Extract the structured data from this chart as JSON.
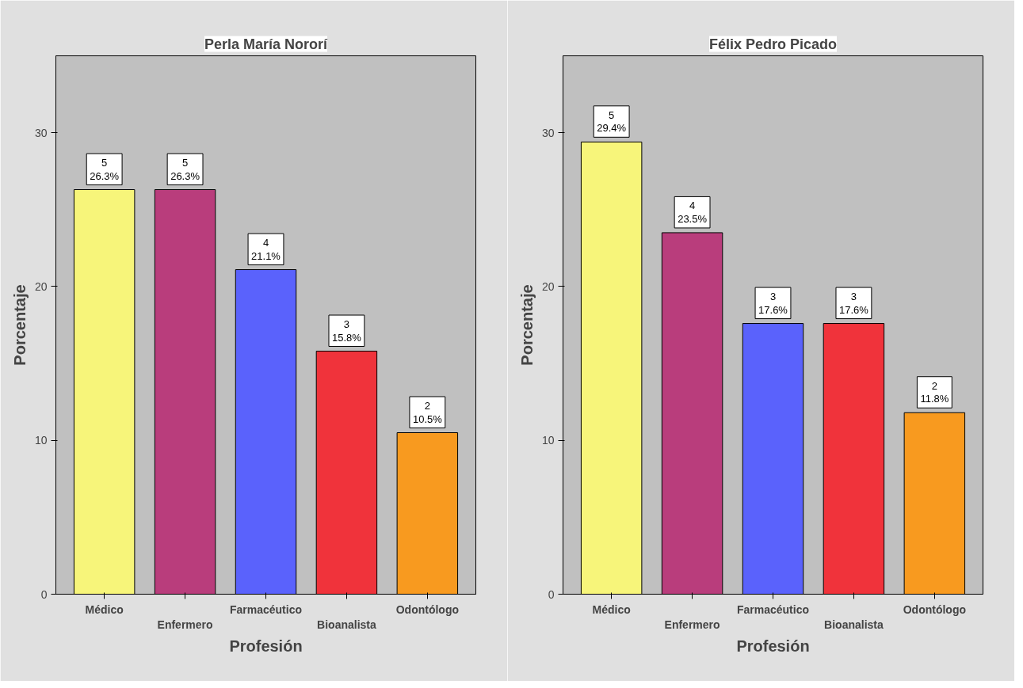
{
  "chart_data": [
    {
      "type": "bar",
      "title": "Perla María Nororí",
      "xlabel": "Profesión",
      "ylabel": "Porcentaje",
      "categories": [
        "Médico",
        "Enfermero",
        "Farmacéutico",
        "Bioanalista",
        "Odontólogo"
      ],
      "values": [
        26.3,
        26.3,
        21.1,
        15.8,
        10.5
      ],
      "colors": [
        "#f7f57a",
        "#b93d7c",
        "#5a62fc",
        "#f0333b",
        "#f89a1f"
      ],
      "value_labels": [
        "5\n26.3%",
        "5\n26.3%",
        "4\n21.1%",
        "3\n15.8%",
        "2\n10.5%"
      ],
      "ylim": [
        0,
        35
      ],
      "yticks": [
        0,
        10,
        20,
        30
      ],
      "grid": false
    },
    {
      "type": "bar",
      "title": "Félix Pedro Picado",
      "xlabel": "Profesión",
      "ylabel": "Porcentaje",
      "categories": [
        "Médico",
        "Enfermero",
        "Farmacéutico",
        "Bioanalista",
        "Odontólogo"
      ],
      "values": [
        29.4,
        23.5,
        17.6,
        17.6,
        11.8
      ],
      "colors": [
        "#f7f57a",
        "#b93d7c",
        "#5a62fc",
        "#f0333b",
        "#f89a1f"
      ],
      "value_labels": [
        "5\n29.4%",
        "4\n23.5%",
        "3\n17.6%",
        "3\n17.6%",
        "2\n11.8%"
      ],
      "ylim": [
        0,
        35
      ],
      "yticks": [
        0,
        10,
        20,
        30
      ],
      "grid": false
    }
  ]
}
